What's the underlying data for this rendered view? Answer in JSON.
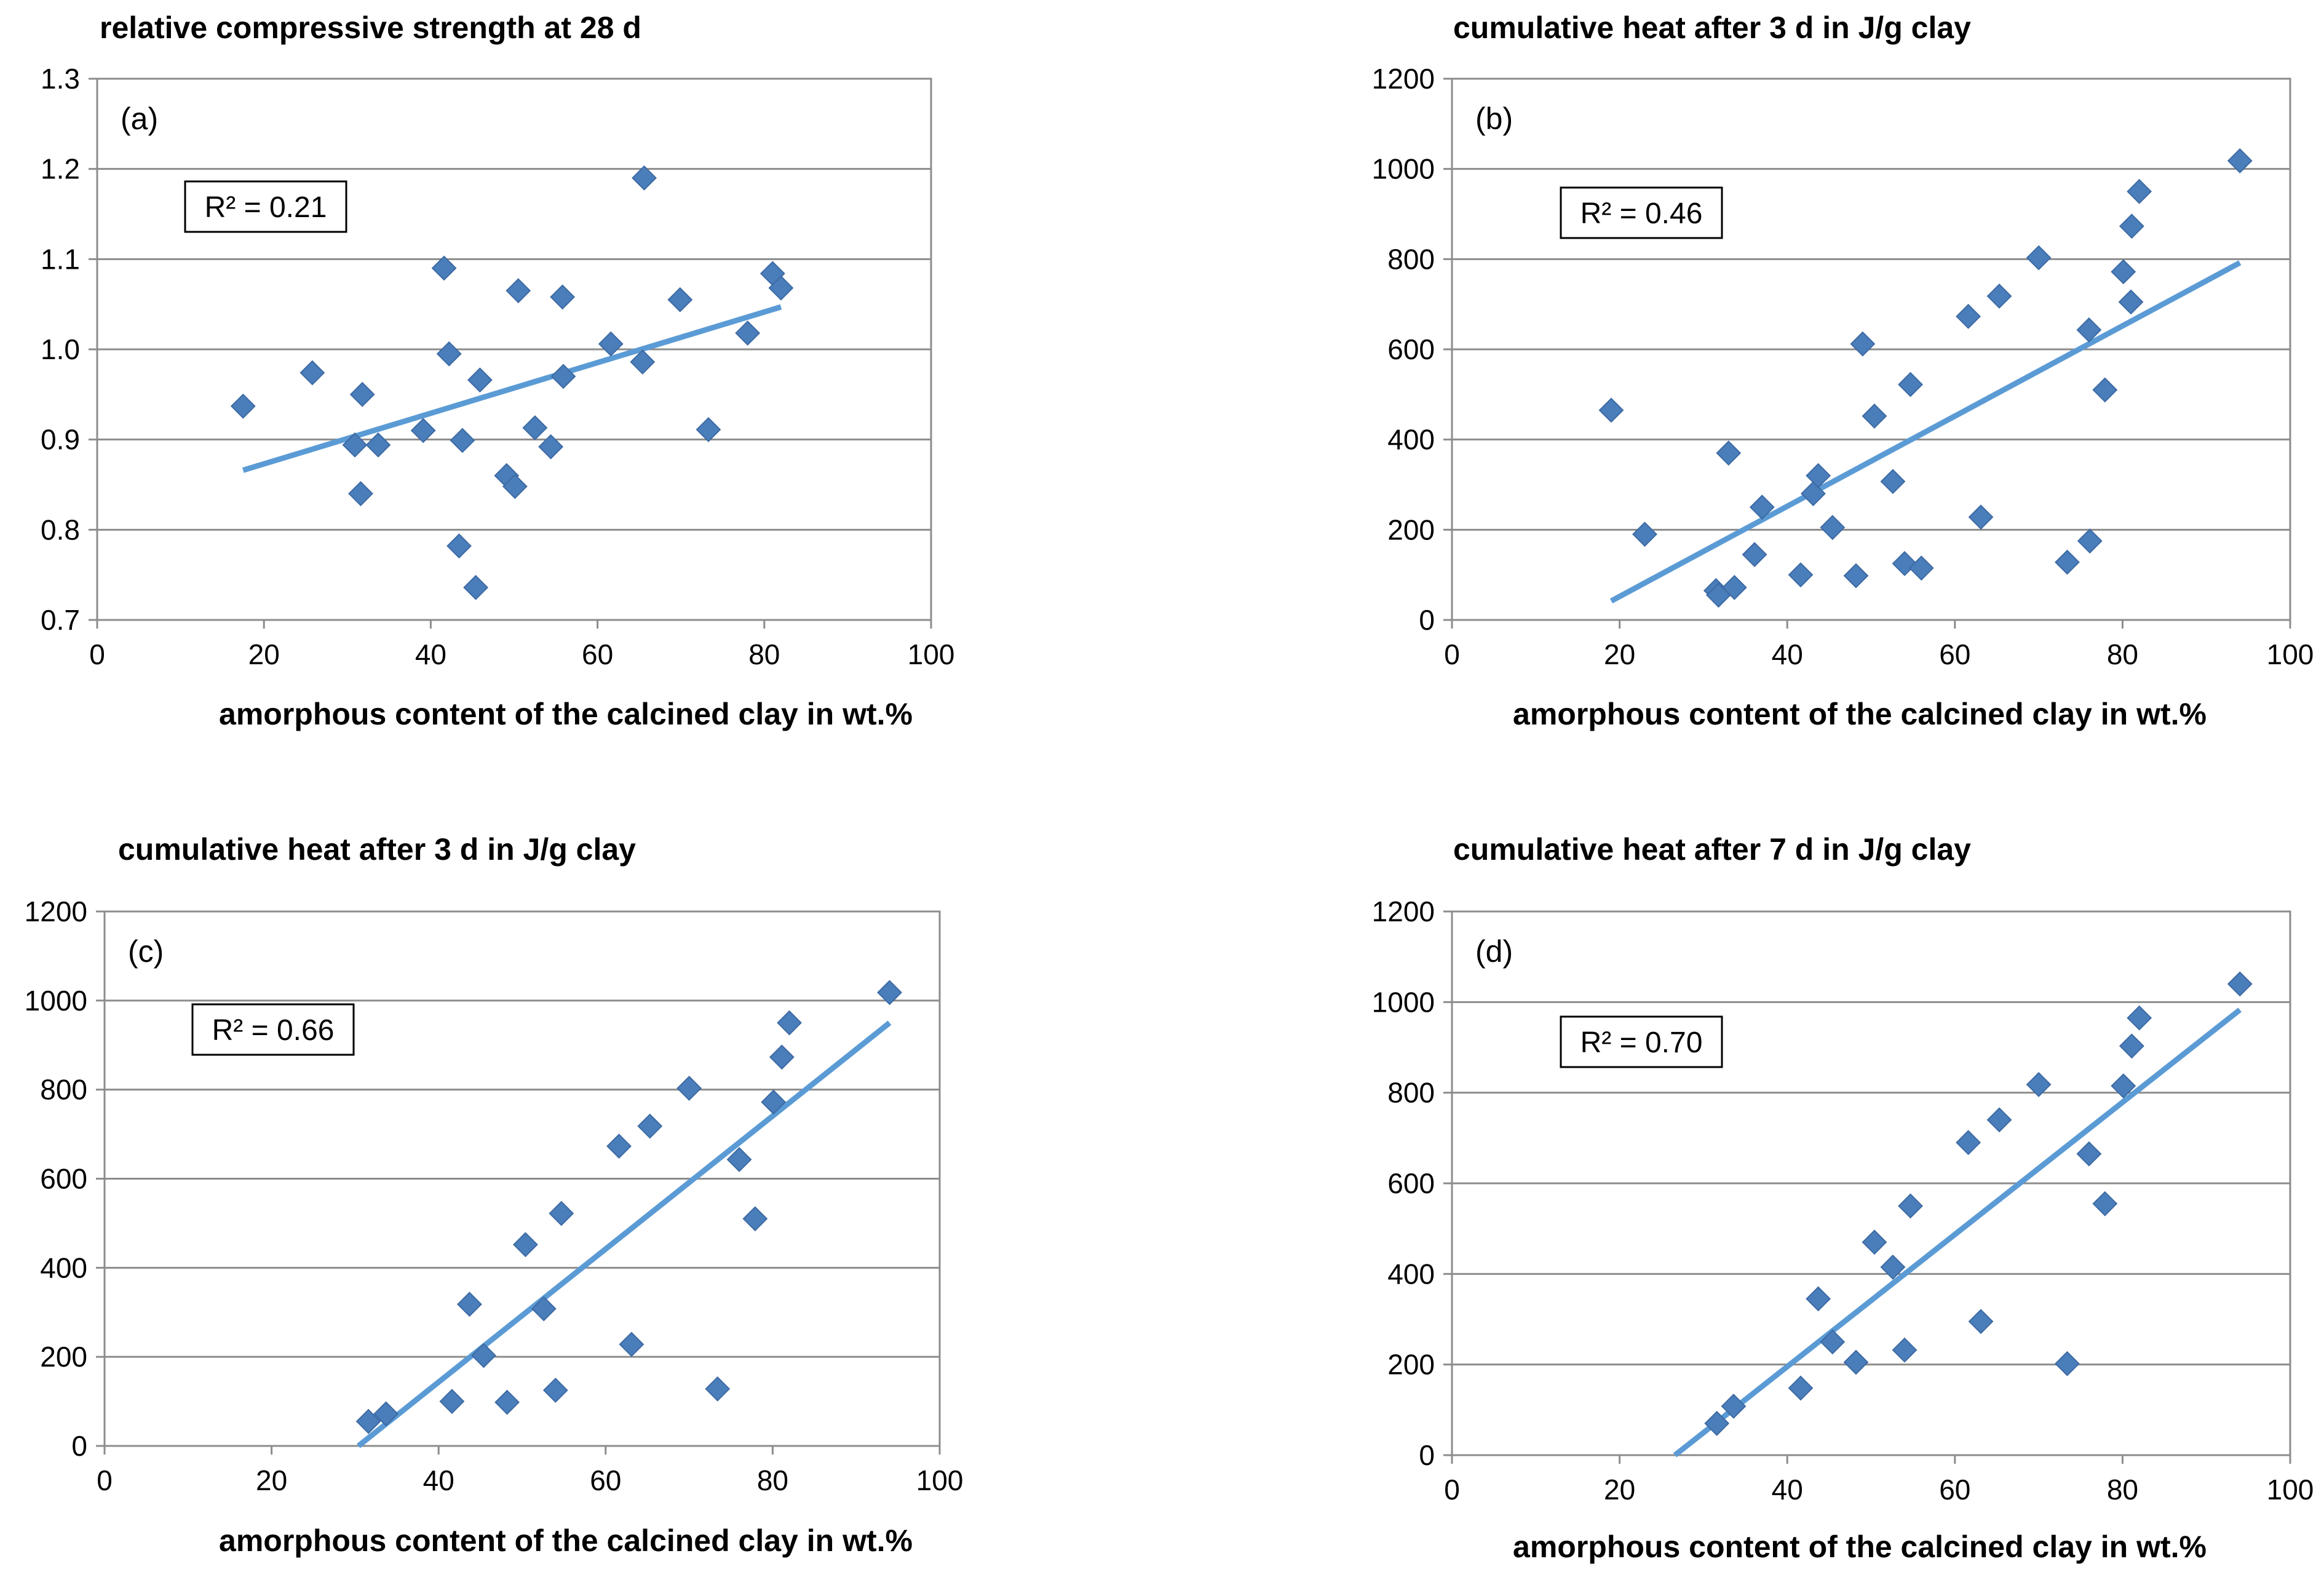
{
  "chart_data": [
    {
      "type": "scatter",
      "panel_label": "(a)",
      "title": "relative compressive strength at 28 d",
      "xlabel": "amorphous content of the calcined clay in wt.%",
      "ylabel": "",
      "xlim": [
        0,
        100
      ],
      "ylim": [
        0.7,
        1.3
      ],
      "xticks": [
        0,
        20,
        40,
        60,
        80,
        100
      ],
      "yticks": [
        0.7,
        0.8,
        0.9,
        1.0,
        1.1,
        1.2,
        1.3
      ],
      "ytick_labels": [
        "0.7",
        "0.8",
        "0.9",
        "1.0",
        "1.1",
        "1.2",
        "1.3"
      ],
      "grid": true,
      "r2_label": "R² = 0.21",
      "color": "#4a7ebb",
      "trend_color": "#5b9bd5",
      "points": [
        [
          17.5,
          0.937
        ],
        [
          25.8,
          0.974
        ],
        [
          30.9,
          0.894
        ],
        [
          31.6,
          0.84
        ],
        [
          31.8,
          0.95
        ],
        [
          33.7,
          0.894
        ],
        [
          39.1,
          0.91
        ],
        [
          41.6,
          1.09
        ],
        [
          42.2,
          0.995
        ],
        [
          43.4,
          0.782
        ],
        [
          43.8,
          0.899
        ],
        [
          45.4,
          0.736
        ],
        [
          45.9,
          0.966
        ],
        [
          49.1,
          0.86
        ],
        [
          50.1,
          0.848
        ],
        [
          50.5,
          1.065
        ],
        [
          52.5,
          0.913
        ],
        [
          54.4,
          0.892
        ],
        [
          55.8,
          1.058
        ],
        [
          55.9,
          0.97
        ],
        [
          61.6,
          1.006
        ],
        [
          65.4,
          0.986
        ],
        [
          65.6,
          1.19
        ],
        [
          69.9,
          1.055
        ],
        [
          73.3,
          0.911
        ],
        [
          78.0,
          1.018
        ],
        [
          81.0,
          1.084
        ],
        [
          82.0,
          1.068
        ]
      ],
      "trendline": [
        [
          17.5,
          0.866
        ],
        [
          82.0,
          1.047
        ]
      ]
    },
    {
      "type": "scatter",
      "panel_label": "(b)",
      "title": "cumulative heat after 3 d in J/g clay",
      "xlabel": "amorphous content of the calcined clay in wt.%",
      "ylabel": "",
      "xlim": [
        0,
        100
      ],
      "ylim": [
        0,
        1200
      ],
      "xticks": [
        0,
        20,
        40,
        60,
        80,
        100
      ],
      "yticks": [
        0,
        200,
        400,
        600,
        800,
        1000,
        1200
      ],
      "ytick_labels": [
        "0",
        "200",
        "400",
        "600",
        "800",
        "1000",
        "1200"
      ],
      "grid": true,
      "r2_label": "R² = 0.46",
      "color": "#4a7ebb",
      "trend_color": "#5b9bd5",
      "points": [
        [
          19,
          465
        ],
        [
          23,
          190
        ],
        [
          31.5,
          65
        ],
        [
          31.8,
          55
        ],
        [
          33,
          370
        ],
        [
          33.7,
          72
        ],
        [
          36.1,
          145
        ],
        [
          37,
          250
        ],
        [
          41.6,
          100
        ],
        [
          43.1,
          280
        ],
        [
          43.7,
          320
        ],
        [
          45.4,
          205
        ],
        [
          48.2,
          98
        ],
        [
          49,
          612
        ],
        [
          50.4,
          452
        ],
        [
          52.6,
          307
        ],
        [
          54,
          125
        ],
        [
          54.7,
          522
        ],
        [
          56,
          115
        ],
        [
          61.6,
          673
        ],
        [
          63.1,
          228
        ],
        [
          65.3,
          718
        ],
        [
          70,
          803
        ],
        [
          73.4,
          128
        ],
        [
          76,
          643
        ],
        [
          76.1,
          175
        ],
        [
          77.9,
          510
        ],
        [
          80.1,
          772
        ],
        [
          81,
          705
        ],
        [
          81.1,
          873
        ],
        [
          82,
          950
        ],
        [
          94,
          1018
        ]
      ],
      "trendline": [
        [
          19,
          42
        ],
        [
          94,
          792
        ]
      ]
    },
    {
      "type": "scatter",
      "panel_label": "(c)",
      "title": "cumulative heat after 3 d in J/g clay",
      "xlabel": "amorphous content of the calcined clay in wt.%",
      "ylabel": "",
      "xlim": [
        0,
        100
      ],
      "ylim": [
        0,
        1200
      ],
      "xticks": [
        0,
        20,
        40,
        60,
        80,
        100
      ],
      "yticks": [
        0,
        200,
        400,
        600,
        800,
        1000,
        1200
      ],
      "ytick_labels": [
        "0",
        "200",
        "400",
        "600",
        "800",
        "1000",
        "1200"
      ],
      "grid": true,
      "r2_label": "R² = 0.66",
      "color": "#4a7ebb",
      "trend_color": "#5b9bd5",
      "points": [
        [
          31.6,
          55
        ],
        [
          33.7,
          72
        ],
        [
          41.6,
          100
        ],
        [
          43.7,
          318
        ],
        [
          45.4,
          203
        ],
        [
          48.2,
          98
        ],
        [
          50.4,
          452
        ],
        [
          52.6,
          308
        ],
        [
          54,
          125
        ],
        [
          54.7,
          522
        ],
        [
          61.6,
          673
        ],
        [
          63.1,
          228
        ],
        [
          65.3,
          718
        ],
        [
          70,
          803
        ],
        [
          73.4,
          128
        ],
        [
          76,
          643
        ],
        [
          77.9,
          510
        ],
        [
          80.1,
          772
        ],
        [
          81.1,
          873
        ],
        [
          82,
          950
        ],
        [
          94,
          1018
        ]
      ],
      "trendline": [
        [
          30.4,
          0
        ],
        [
          94,
          950
        ]
      ]
    },
    {
      "type": "scatter",
      "panel_label": "(d)",
      "title": "cumulative heat after 7 d in J/g clay",
      "xlabel": "amorphous content of the calcined clay in wt.%",
      "ylabel": "",
      "xlim": [
        0,
        100
      ],
      "ylim": [
        0,
        1200
      ],
      "xticks": [
        0,
        20,
        40,
        60,
        80,
        100
      ],
      "yticks": [
        0,
        200,
        400,
        600,
        800,
        1000,
        1200
      ],
      "ytick_labels": [
        "0",
        "200",
        "400",
        "600",
        "800",
        "1000",
        "1200"
      ],
      "grid": true,
      "r2_label": "R² = 0.70",
      "color": "#4a7ebb",
      "trend_color": "#5b9bd5",
      "points": [
        [
          31.6,
          70
        ],
        [
          33.6,
          108
        ],
        [
          41.6,
          148
        ],
        [
          43.7,
          345
        ],
        [
          45.4,
          250
        ],
        [
          48.2,
          205
        ],
        [
          50.4,
          470
        ],
        [
          52.6,
          415
        ],
        [
          54,
          232
        ],
        [
          54.7,
          550
        ],
        [
          61.6,
          690
        ],
        [
          63.1,
          295
        ],
        [
          65.3,
          740
        ],
        [
          70,
          818
        ],
        [
          73.4,
          202
        ],
        [
          76,
          665
        ],
        [
          77.9,
          555
        ],
        [
          80.1,
          815
        ],
        [
          81.1,
          903
        ],
        [
          82,
          965
        ],
        [
          94,
          1040
        ]
      ],
      "trendline": [
        [
          26.6,
          0
        ],
        [
          94,
          983
        ]
      ]
    }
  ]
}
